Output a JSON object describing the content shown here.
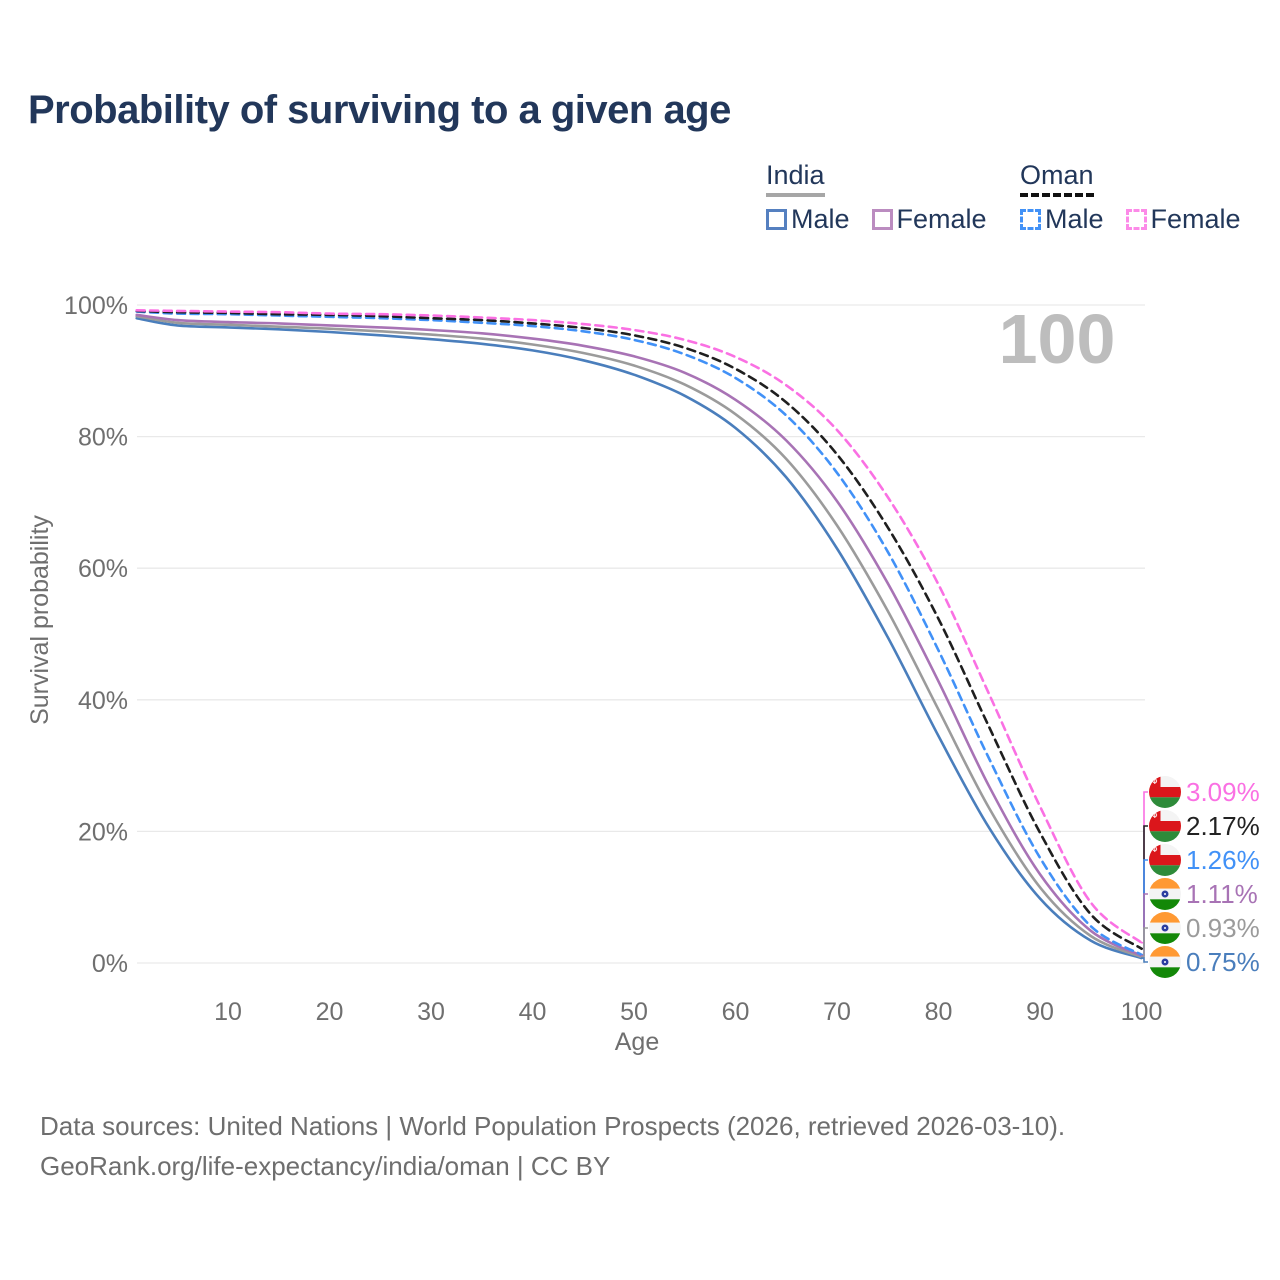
{
  "title": "Probability of surviving to a given age",
  "legend": {
    "india": {
      "title": "India",
      "male": "Male",
      "female": "Female"
    },
    "oman": {
      "title": "Oman",
      "male": "Male",
      "female": "Female"
    }
  },
  "watermark": "100",
  "axes": {
    "y_title": "Survival probability",
    "x_title": "Age",
    "y_ticks": [
      "0%",
      "20%",
      "40%",
      "60%",
      "80%",
      "100%"
    ],
    "y_tick_values": [
      0,
      20,
      40,
      60,
      80,
      100
    ],
    "x_ticks": [
      10,
      20,
      30,
      40,
      50,
      60,
      70,
      80,
      90,
      100
    ]
  },
  "colors": {
    "grid": "#e9e9e9",
    "tick_text": "#6f6f6f",
    "watermark": "#bdbdbd",
    "title_text": "#22375a"
  },
  "chart_data": {
    "type": "line",
    "title": "Probability of surviving to a given age",
    "xlabel": "Age",
    "ylabel": "Survival probability",
    "xlim": [
      0,
      100
    ],
    "ylim": [
      0,
      100
    ],
    "grid": "horizontal",
    "legend_position": "top-right",
    "x": [
      1,
      5,
      10,
      15,
      20,
      25,
      30,
      35,
      40,
      45,
      50,
      55,
      60,
      65,
      70,
      75,
      80,
      85,
      90,
      95,
      100
    ],
    "series": [
      {
        "name": "India Male",
        "country": "india",
        "sex": "male",
        "style": "solid",
        "color": "#4a7ebc",
        "values": [
          98.0,
          96.9,
          96.6,
          96.3,
          95.9,
          95.4,
          94.8,
          94.1,
          93.1,
          91.6,
          89.4,
          86.2,
          81.3,
          73.8,
          63.0,
          49.5,
          34.5,
          20.5,
          9.8,
          3.4,
          0.75
        ]
      },
      {
        "name": "India Both sexes",
        "country": "india",
        "sex": "both",
        "style": "solid",
        "color": "#9b9b9b",
        "values": [
          98.3,
          97.3,
          97.0,
          96.7,
          96.4,
          96.0,
          95.5,
          94.9,
          94.0,
          92.7,
          90.8,
          87.9,
          83.4,
          76.6,
          66.5,
          53.5,
          38.5,
          23.5,
          11.5,
          4.1,
          0.93
        ]
      },
      {
        "name": "India Female",
        "country": "india",
        "sex": "female",
        "style": "solid",
        "color": "#a873b5",
        "values": [
          98.5,
          97.7,
          97.4,
          97.2,
          96.9,
          96.6,
          96.2,
          95.7,
          94.9,
          93.8,
          92.2,
          89.7,
          85.6,
          79.4,
          70.2,
          57.7,
          42.8,
          26.8,
          13.5,
          4.9,
          1.11
        ]
      },
      {
        "name": "Oman Male",
        "country": "oman",
        "sex": "male",
        "style": "dashed",
        "color": "#4191f7",
        "values": [
          99.0,
          98.7,
          98.6,
          98.4,
          98.2,
          98.0,
          97.7,
          97.3,
          96.8,
          96.0,
          94.7,
          92.5,
          88.9,
          83.2,
          74.5,
          62.5,
          47.5,
          31.0,
          16.0,
          5.6,
          1.26
        ]
      },
      {
        "name": "Oman Both sexes",
        "country": "oman",
        "sex": "both",
        "style": "dashed",
        "color": "#1f1f1f",
        "values": [
          99.1,
          98.9,
          98.8,
          98.6,
          98.5,
          98.3,
          98.0,
          97.7,
          97.2,
          96.5,
          95.4,
          93.5,
          90.3,
          85.2,
          77.3,
          66.2,
          52.3,
          35.8,
          19.8,
          7.4,
          2.17
        ]
      },
      {
        "name": "Oman Female",
        "country": "oman",
        "sex": "female",
        "style": "dashed",
        "color": "#fa70e3",
        "values": [
          99.2,
          99.1,
          99.0,
          98.9,
          98.7,
          98.6,
          98.4,
          98.1,
          97.7,
          97.1,
          96.2,
          94.7,
          92.1,
          87.8,
          81.0,
          70.8,
          57.5,
          40.8,
          23.8,
          9.2,
          3.09
        ]
      }
    ],
    "end_labels": [
      {
        "text": "3.09%",
        "value": 3.09,
        "flag": "oman",
        "color": "#fa70e3",
        "series": "Oman Female"
      },
      {
        "text": "2.17%",
        "value": 2.17,
        "flag": "oman",
        "color": "#222222",
        "series": "Oman Both sexes"
      },
      {
        "text": "1.26%",
        "value": 1.26,
        "flag": "oman",
        "color": "#4191f7",
        "series": "Oman Male"
      },
      {
        "text": "1.11%",
        "value": 1.11,
        "flag": "india",
        "color": "#a873b5",
        "series": "India Female"
      },
      {
        "text": "0.93%",
        "value": 0.93,
        "flag": "india",
        "color": "#9b9b9b",
        "series": "India Both sexes"
      },
      {
        "text": "0.75%",
        "value": 0.75,
        "flag": "india",
        "color": "#4a7ebc",
        "series": "India Male"
      }
    ]
  },
  "source": {
    "line1": "Data sources: United Nations | World Population Prospects (2026, retrieved 2026-03-10).",
    "line2": "GeoRank.org/life-expectancy/india/oman | CC BY"
  }
}
